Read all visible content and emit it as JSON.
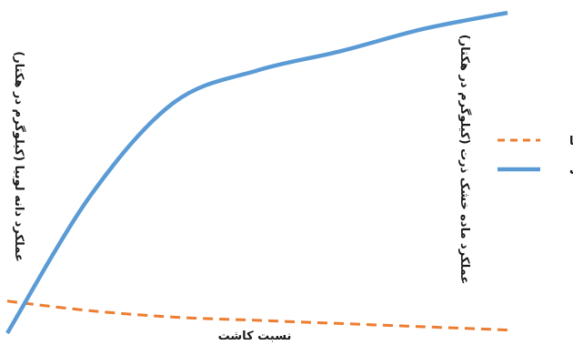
{
  "chart_data": {
    "type": "line",
    "title": "",
    "xlabel": "نسبت کاشت",
    "ylabel_left": "عملکرد دانه لوبیا (کیلوگرم در هکتار)",
    "ylabel_right": "عملکرد ماده خشک ذرت (کیلوگرم در هکتار)",
    "axis_ticks_shown": false,
    "grid": false,
    "legend_position": "right",
    "series": [
      {
        "name": "لوبیا",
        "style": "dashed",
        "color": "#ED7D31",
        "values": [
          0.1,
          0.07,
          0.05,
          0.04,
          0.03,
          0.02,
          0.01
        ]
      },
      {
        "name": "ذرت",
        "style": "solid",
        "color": "#5B9BD5",
        "values": [
          0.0,
          0.43,
          0.72,
          0.82,
          0.88,
          0.95,
          1.0
        ]
      }
    ],
    "x": [
      0,
      1,
      2,
      3,
      4,
      5,
      6
    ],
    "ylim": [
      0,
      1
    ]
  }
}
